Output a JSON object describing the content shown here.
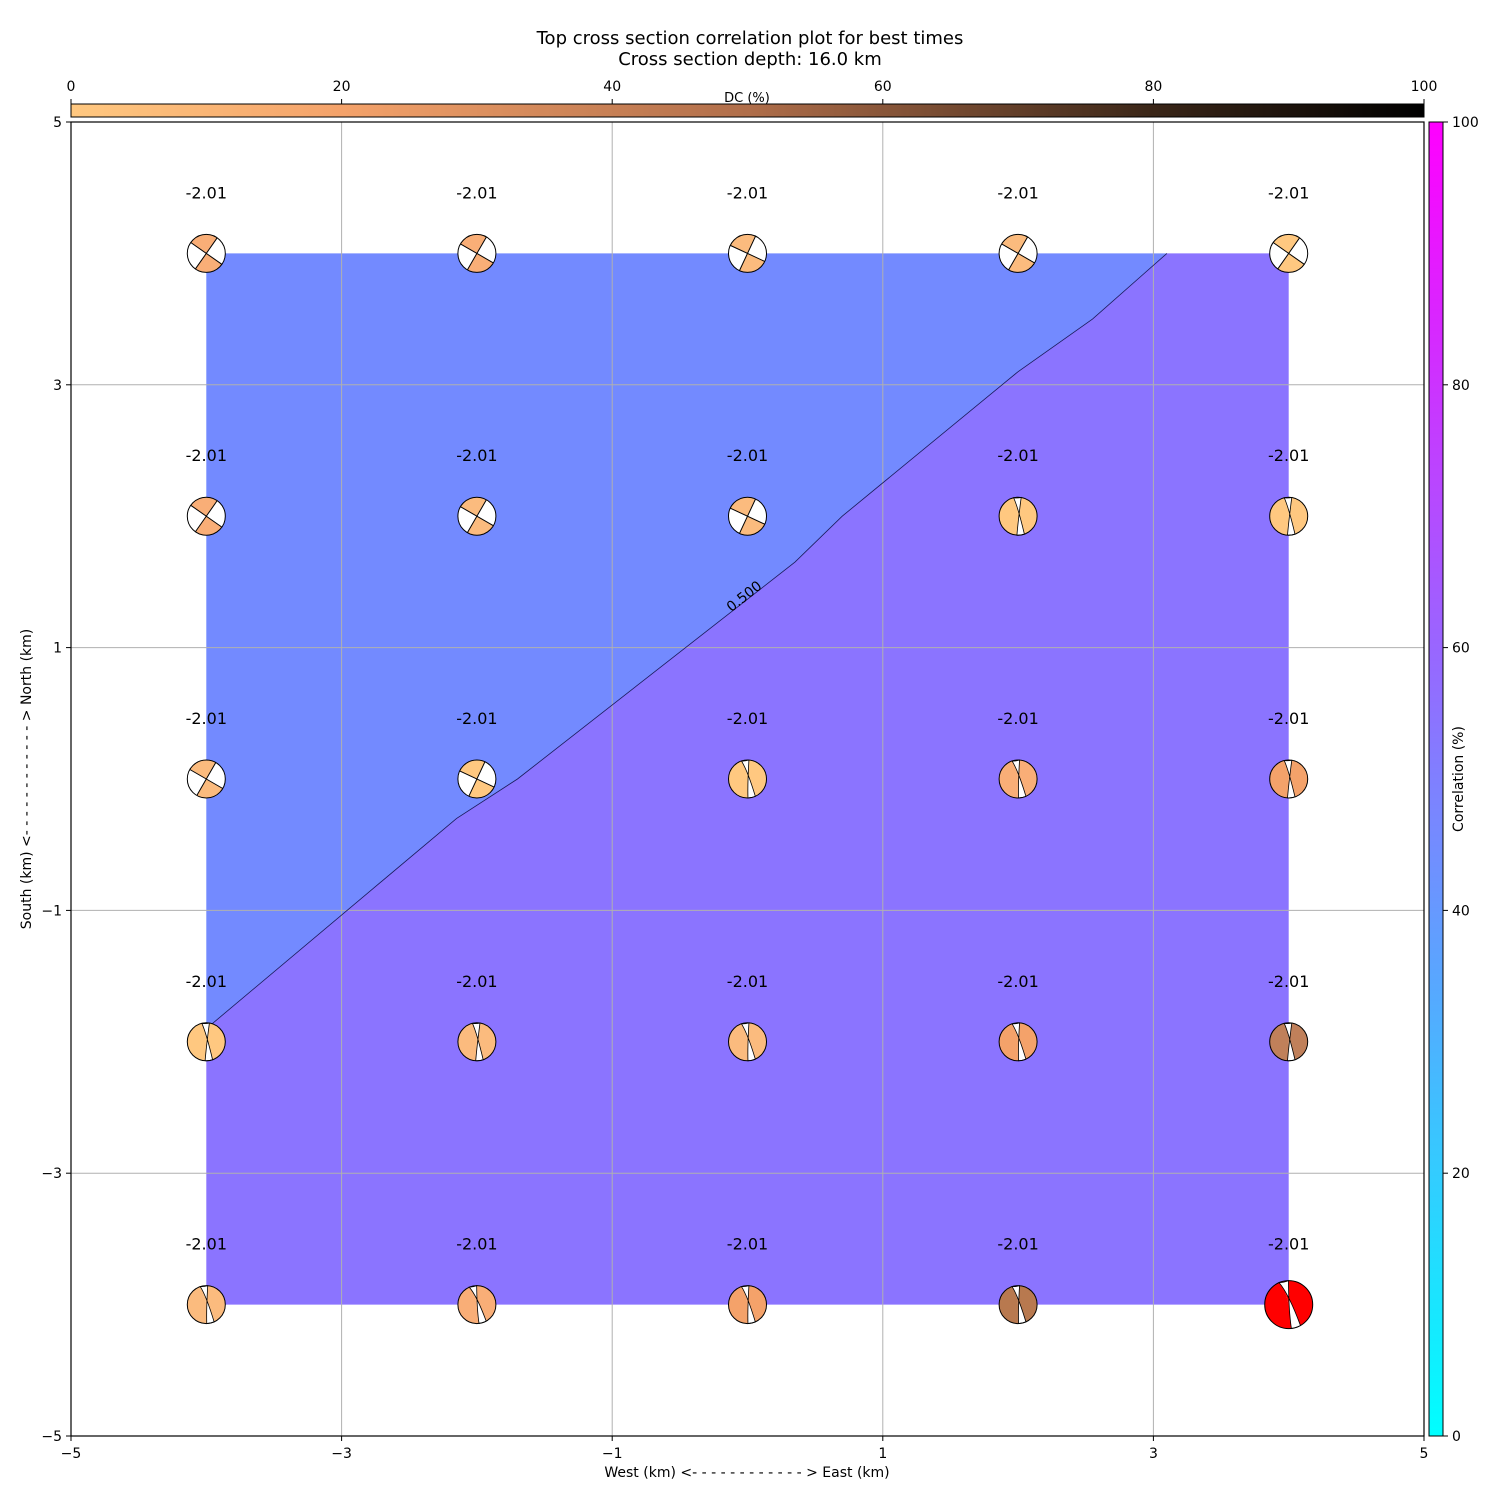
{
  "chart_data": {
    "type": "heatmap",
    "title": "Top cross section correlation plot for best times",
    "subtitle": "Cross section depth: 16.0 km",
    "xlabel": "West (km) <- - - - - - - - - - - - > East (km)",
    "ylabel": "South (km) <- - - - - - - - - - - - > North (km)",
    "xlim": [
      -5,
      5
    ],
    "ylim": [
      -5,
      5
    ],
    "xticks": [
      -5,
      -3,
      -1,
      1,
      3,
      5
    ],
    "yticks": [
      -5,
      -3,
      -1,
      1,
      3,
      5
    ],
    "xtick_labels": [
      "−5",
      "−3",
      "−1",
      "1",
      "3",
      "5"
    ],
    "ytick_labels": [
      "−5",
      "−3",
      "−1",
      "1",
      "3",
      "5"
    ],
    "grid": true,
    "grid_x": [
      -4,
      -2,
      0,
      2,
      4
    ],
    "grid_y": [
      4,
      2,
      0,
      -2,
      -4
    ],
    "value_label": "-2.01",
    "contour": {
      "level_label": "0.500",
      "low_color": "#738aff",
      "high_color": "#8b74ff",
      "line": [
        [
          -4,
          -1.9
        ],
        [
          -2.15,
          -0.3
        ],
        [
          -1.7,
          0
        ],
        [
          0.35,
          1.65
        ],
        [
          0.7,
          2
        ],
        [
          2,
          3.1
        ],
        [
          2.55,
          3.5
        ],
        [
          3.1,
          4
        ]
      ]
    },
    "correlation_colorbar": {
      "label": "Correlation (%)",
      "range": [
        0,
        100
      ],
      "ticks": [
        0,
        20,
        40,
        60,
        80,
        100
      ],
      "colors": [
        "#00ffff",
        "#ff00ff"
      ]
    },
    "dc_colorbar": {
      "label": "DC (%)",
      "range": [
        0,
        100
      ],
      "ticks": [
        0,
        20,
        40,
        60,
        80,
        100
      ],
      "colors": [
        "#ffc880",
        "#f4a26a",
        "#b06e4a",
        "#5a3a28",
        "#000000"
      ]
    },
    "beachballs": [
      {
        "x": -4,
        "y": 4,
        "color": "#f9ae77",
        "strike": 55,
        "variant": "ss"
      },
      {
        "x": -2,
        "y": 4,
        "color": "#f9ae77",
        "strike": 60,
        "variant": "ss"
      },
      {
        "x": 0,
        "y": 4,
        "color": "#fbbb7e",
        "strike": 65,
        "variant": "ss"
      },
      {
        "x": 2,
        "y": 4,
        "color": "#fbbb7e",
        "strike": 60,
        "variant": "ss"
      },
      {
        "x": 4,
        "y": 4,
        "color": "#ffc880",
        "strike": 55,
        "variant": "ss"
      },
      {
        "x": -4,
        "y": 2,
        "color": "#f9ae77",
        "strike": 55,
        "variant": "ss"
      },
      {
        "x": -2,
        "y": 2,
        "color": "#fbbb7e",
        "strike": 60,
        "variant": "ss"
      },
      {
        "x": 0,
        "y": 2,
        "color": "#fbbb7e",
        "strike": 65,
        "variant": "ss"
      },
      {
        "x": 2,
        "y": 2,
        "color": "#ffc880",
        "strike": 95,
        "variant": "thrust"
      },
      {
        "x": 4,
        "y": 2,
        "color": "#ffc880",
        "strike": 95,
        "variant": "thrust"
      },
      {
        "x": -4,
        "y": 0,
        "color": "#fbbb7e",
        "strike": 60,
        "variant": "ss"
      },
      {
        "x": -2,
        "y": 0,
        "color": "#ffc880",
        "strike": 65,
        "variant": "ss"
      },
      {
        "x": 0,
        "y": 0,
        "color": "#ffc880",
        "strike": 100,
        "variant": "thrust"
      },
      {
        "x": 2,
        "y": 0,
        "color": "#f9ae77",
        "strike": 100,
        "variant": "thrust"
      },
      {
        "x": 4,
        "y": 0,
        "color": "#f4a26a",
        "strike": 95,
        "variant": "thrust"
      },
      {
        "x": -4,
        "y": -2,
        "color": "#ffc880",
        "strike": 95,
        "variant": "thrust"
      },
      {
        "x": -2,
        "y": -2,
        "color": "#fbbb7e",
        "strike": 95,
        "variant": "thrust"
      },
      {
        "x": 0,
        "y": -2,
        "color": "#fbbb7e",
        "strike": 100,
        "variant": "thrust"
      },
      {
        "x": 2,
        "y": -2,
        "color": "#f4a26a",
        "strike": 100,
        "variant": "thrust"
      },
      {
        "x": 4,
        "y": -2,
        "color": "#c0805a",
        "strike": 95,
        "variant": "thrust"
      },
      {
        "x": -4,
        "y": -4,
        "color": "#fbbb7e",
        "strike": 100,
        "variant": "thrust"
      },
      {
        "x": -2,
        "y": -4,
        "color": "#f9ae77",
        "strike": 105,
        "variant": "thrust"
      },
      {
        "x": 0,
        "y": -4,
        "color": "#f4a26a",
        "strike": 100,
        "variant": "thrust"
      },
      {
        "x": 2,
        "y": -4,
        "color": "#b8794f",
        "strike": 100,
        "variant": "thrust"
      },
      {
        "x": 4,
        "y": -4,
        "color": "#ff0000",
        "strike": 105,
        "variant": "thrust",
        "big": true
      }
    ]
  }
}
